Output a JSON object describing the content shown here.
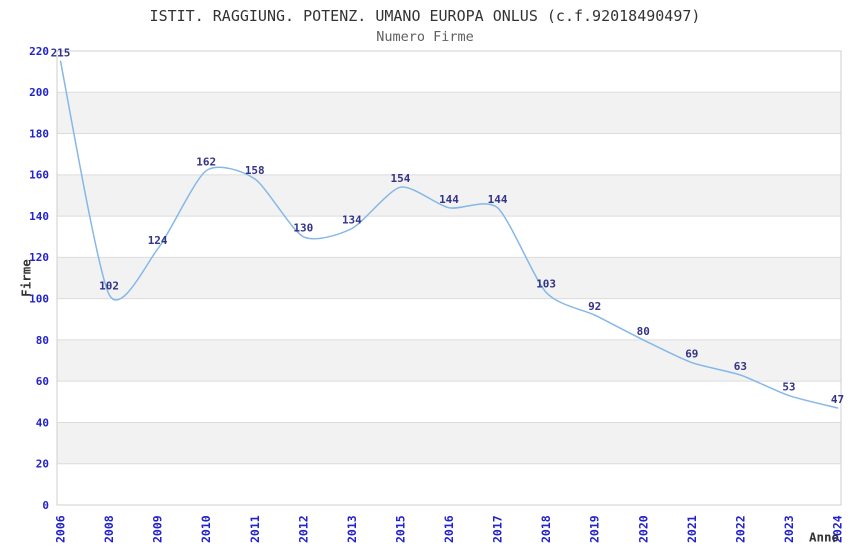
{
  "title": "ISTIT. RAGGIUNG. POTENZ. UMANO EUROPA ONLUS (c.f.92018490497)",
  "subtitle": "Numero Firme",
  "chart_data": {
    "type": "line",
    "title": "ISTIT. RAGGIUNG. POTENZ. UMANO EUROPA ONLUS (c.f.92018490497)",
    "subtitle": "Numero Firme",
    "xlabel": "Anno",
    "ylabel": "Firme",
    "x": [
      "2006",
      "2008",
      "2009",
      "2010",
      "2011",
      "2012",
      "2013",
      "2015",
      "2016",
      "2017",
      "2018",
      "2019",
      "2020",
      "2021",
      "2022",
      "2023",
      "2024"
    ],
    "series": [
      {
        "name": "Numero Firme",
        "values": [
          215,
          102,
          124,
          162,
          158,
          130,
          134,
          154,
          144,
          144,
          103,
          92,
          80,
          69,
          63,
          53,
          47
        ]
      }
    ],
    "ylim": [
      0,
      220
    ],
    "yticks": [
      0,
      20,
      40,
      60,
      80,
      100,
      120,
      140,
      160,
      180,
      200,
      220
    ],
    "grid": true,
    "legend_position": "none",
    "data_labels_visible": true,
    "x_tick_rotation": -90,
    "colors": {
      "line": "#85b8e8",
      "tick_label": "#2222cc",
      "data_label": "#333387",
      "band": "#f2f2f2",
      "gridline": "#dcdcdc",
      "frame": "#cfcfcf",
      "title": "#333333",
      "subtitle": "#606060",
      "axis_title": "#333333",
      "background": "#ffffff"
    }
  }
}
